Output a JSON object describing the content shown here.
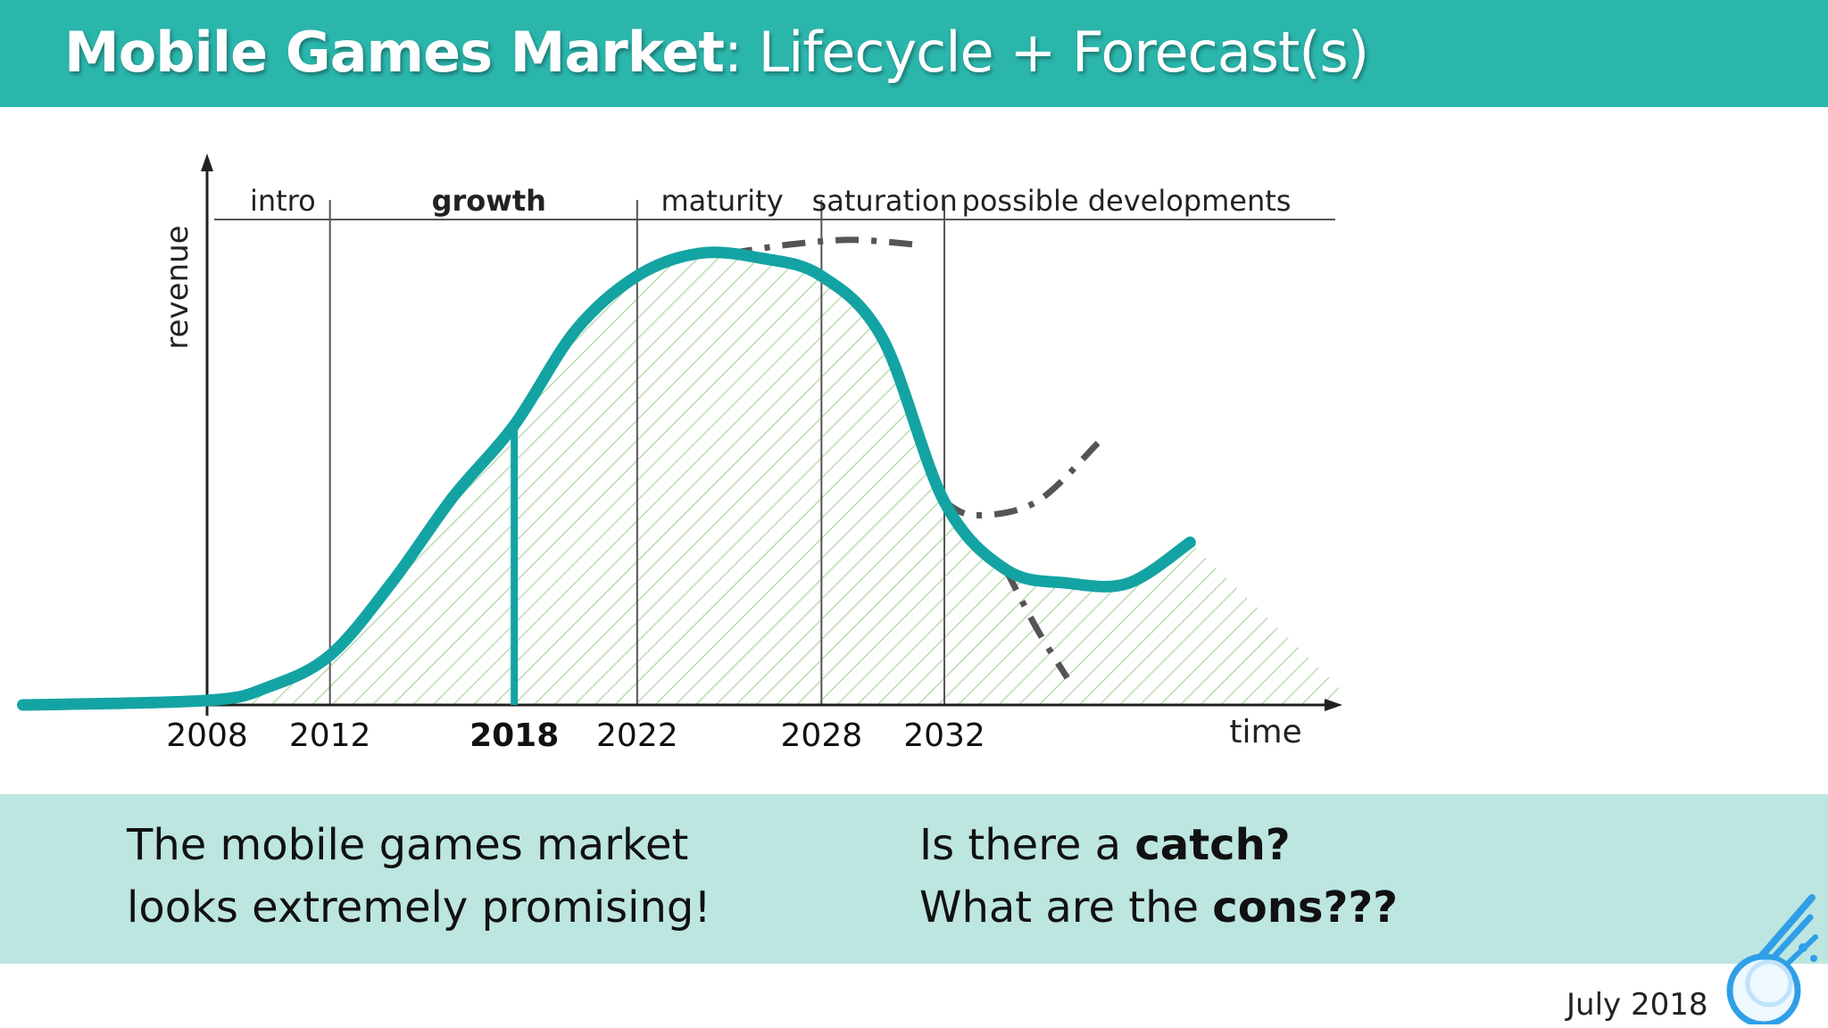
{
  "header": {
    "title_bold": "Mobile Games Market",
    "title_rest": ": Lifecycle + Forecast(s)"
  },
  "chart_data": {
    "type": "area",
    "xlabel": "time",
    "ylabel": "revenue",
    "x_ticks": [
      "2008",
      "2012",
      "2018",
      "2022",
      "2028",
      "2032"
    ],
    "highlighted_tick": "2018",
    "phases": [
      "intro",
      "growth",
      "maturity",
      "saturation",
      "possible developments"
    ],
    "highlighted_phase": "growth",
    "series": [
      {
        "values": [
          {
            "x": 2002,
            "y": 0
          },
          {
            "x": 2008,
            "y": 1
          },
          {
            "x": 2010,
            "y": 4
          },
          {
            "x": 2012,
            "y": 11
          },
          {
            "x": 2014,
            "y": 27
          },
          {
            "x": 2016,
            "y": 46
          },
          {
            "x": 2018,
            "y": 62
          },
          {
            "x": 2020,
            "y": 83
          },
          {
            "x": 2022,
            "y": 95
          },
          {
            "x": 2024,
            "y": 100
          },
          {
            "x": 2026,
            "y": 99
          },
          {
            "x": 2028,
            "y": 95
          },
          {
            "x": 2030,
            "y": 81
          },
          {
            "x": 2032,
            "y": 45
          },
          {
            "x": 2034,
            "y": 30
          },
          {
            "x": 2036,
            "y": 27
          },
          {
            "x": 2038,
            "y": 27
          },
          {
            "x": 2040,
            "y": 36
          }
        ]
      }
    ],
    "forecasts_dashed": [
      {
        "values": [
          {
            "x": 2025,
            "y": 100
          },
          {
            "x": 2027,
            "y": 102
          },
          {
            "x": 2029,
            "y": 103
          },
          {
            "x": 2031,
            "y": 102
          }
        ]
      },
      {
        "values": [
          {
            "x": 2032,
            "y": 45
          },
          {
            "x": 2033,
            "y": 42
          },
          {
            "x": 2035,
            "y": 45
          },
          {
            "x": 2037,
            "y": 58
          }
        ]
      },
      {
        "values": [
          {
            "x": 2034,
            "y": 30
          },
          {
            "x": 2035,
            "y": 17
          },
          {
            "x": 2036,
            "y": 6
          }
        ]
      }
    ],
    "colors": {
      "curve": "#14a3a3",
      "hatch": "#b9ddb0",
      "dashed": "#555555"
    }
  },
  "band": {
    "left_line1": "The mobile games market",
    "left_line2": "looks extremely promising!",
    "right_line1_pre": "Is there a ",
    "right_line1_bold": "catch?",
    "right_line2_pre": "What are the ",
    "right_line2_bold": "cons???"
  },
  "footer": {
    "date": "July 2018",
    "logo_icon": "comet-logo-icon"
  }
}
